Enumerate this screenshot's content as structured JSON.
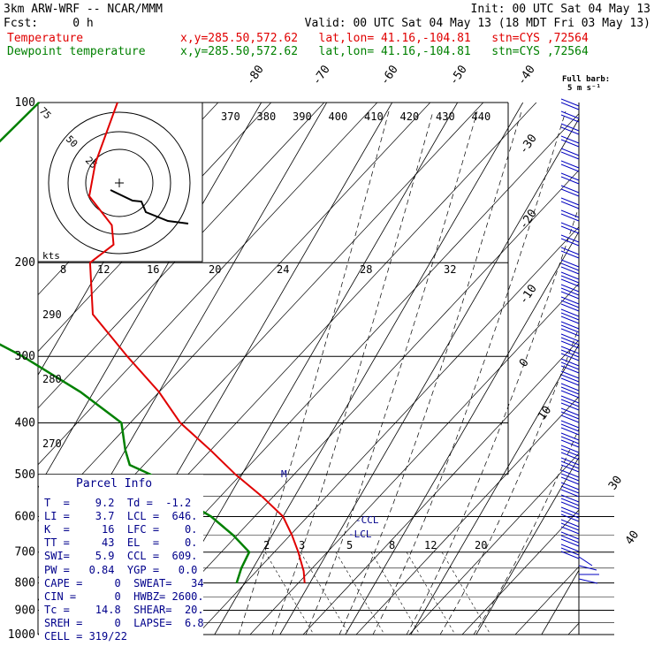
{
  "header": {
    "line1_left": "3km ARW-WRF -- NCAR/MMM",
    "line1_right": "Init: 00 UTC Sat 04 May 13",
    "line2_left": "Fcst:     0 h",
    "line2_right": "Valid: 00 UTC Sat 04 May 13 (18 MDT Fri 03 May 13)",
    "temp_label": "Temperature",
    "dew_label": "Dewpoint temperature",
    "temp_loc": "x,y=285.50,572.62   lat,lon= 41.16,-104.81   stn=CYS ,72564",
    "dew_loc": "x,y=285.50,572.62   lat,lon= 41.16,-104.81   stn=CYS ,72564",
    "full_barb_1": "Full barb:",
    "full_barb_2": "5 m s⁻¹"
  },
  "colors": {
    "temperature": "#e00000",
    "dewpoint": "#008000",
    "barbs": "#0000c0",
    "info": "#00008b"
  },
  "chart_data": {
    "type": "line",
    "x_scale": "skew-T temperature (C)",
    "y_scale": "log pressure (hPa)",
    "pressure_levels": [
      100,
      200,
      300,
      400,
      500,
      600,
      700,
      800,
      900,
      1000
    ],
    "isotherm_labels": [
      -80,
      -70,
      -60,
      -50,
      -40,
      -30,
      -20,
      -10,
      0,
      10,
      30,
      40
    ],
    "theta_labels": [
      370,
      380,
      390,
      400,
      410,
      420,
      430,
      440
    ],
    "theta_left_labels": [
      290,
      280,
      270
    ],
    "mixing_ratio_upper_labels": [
      8,
      12,
      16,
      20,
      24,
      28,
      32
    ],
    "mixing_ratio_lower_labels": [
      2,
      3,
      5,
      8,
      12,
      20
    ],
    "hodograph_ring_labels": [
      75,
      50,
      25
    ],
    "hodograph_unit": "kts",
    "annotations": {
      "ccl": "-CCL",
      "lcl": "-LCL",
      "m": "M"
    },
    "series": [
      {
        "name": "Temperature",
        "points": [
          [
            100,
            -62
          ],
          [
            130,
            -60
          ],
          [
            150,
            -58
          ],
          [
            170,
            -52
          ],
          [
            185,
            -50
          ],
          [
            200,
            -52
          ],
          [
            250,
            -47
          ],
          [
            300,
            -38
          ],
          [
            350,
            -30
          ],
          [
            400,
            -24
          ],
          [
            450,
            -17
          ],
          [
            500,
            -11
          ],
          [
            550,
            -5
          ],
          [
            600,
            0
          ],
          [
            650,
            3
          ],
          [
            700,
            5.5
          ],
          [
            760,
            8
          ],
          [
            800,
            9.2
          ]
        ]
      },
      {
        "name": "Dewpoint temperature",
        "points": [
          [
            100,
            -74
          ],
          [
            130,
            -78
          ],
          [
            170,
            -80
          ],
          [
            200,
            -81
          ],
          [
            250,
            -70
          ],
          [
            300,
            -54
          ],
          [
            350,
            -42
          ],
          [
            400,
            -33
          ],
          [
            450,
            -30
          ],
          [
            480,
            -28
          ],
          [
            500,
            -24
          ],
          [
            550,
            -18
          ],
          [
            600,
            -11
          ],
          [
            650,
            -6
          ],
          [
            700,
            -2
          ],
          [
            750,
            -1.8
          ],
          [
            800,
            -1.2
          ]
        ]
      }
    ]
  },
  "parcel_info": {
    "title": "Parcel Info",
    "rows": [
      "T  =    9.2  Td =  -1.2",
      "LI =    3.7  LCL =  646.",
      "K  =     16  LFC =    0.",
      "TT =     43  EL  =    0.",
      "SWI=    5.9  CCL =  609.",
      "PW =   0.84  YGP =   0.0",
      "CAPE =     0  SWEAT=   34",
      "CIN =      0  HWBZ= 2600.",
      "Tc =    14.8  SHEAR=  20.",
      "SREH =     0  LAPSE=  6.8",
      "CELL = 319/22"
    ]
  }
}
